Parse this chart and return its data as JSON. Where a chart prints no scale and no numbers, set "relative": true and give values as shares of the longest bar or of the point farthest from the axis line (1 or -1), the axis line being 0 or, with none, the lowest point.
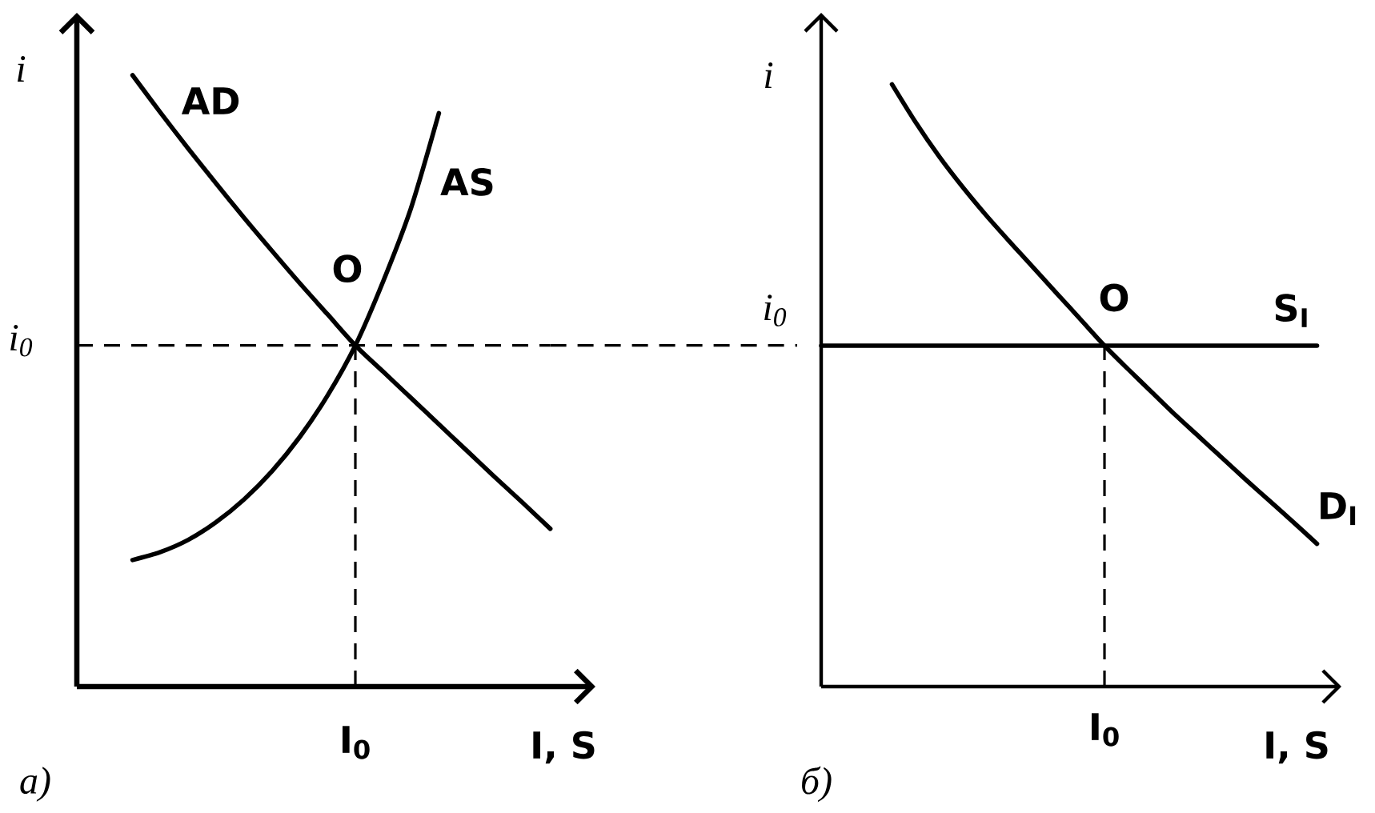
{
  "chart_data": [
    {
      "type": "line",
      "title": "а)",
      "xlabel": "I, S",
      "ylabel": "i",
      "relative": true,
      "categories": [
        null,
        null,
        null,
        null,
        null,
        null,
        null,
        null,
        null,
        null,
        null,
        null,
        null,
        null,
        null,
        null,
        null,
        null,
        null
      ],
      "series": [
        {
          "name": "AD",
          "color": "#000000",
          "values": [
            null,
            null,
            1.0,
            0.939,
            0.88,
            0.823,
            0.767,
            0.713,
            0.66,
            0.609,
            0.558,
            0.515,
            0.472,
            0.429,
            0.386,
            0.343,
            0.301,
            0.258,
            null
          ]
        },
        {
          "name": "AS",
          "color": "#000000",
          "values": [
            null,
            null,
            0.207,
            0.22,
            0.24,
            0.269,
            0.306,
            0.352,
            0.408,
            0.476,
            0.558,
            0.663,
            0.783,
            0.938,
            null,
            null,
            null,
            null,
            null
          ]
        }
      ],
      "ref_lines": [
        {
          "axis": "y",
          "value": 0.558,
          "label": "i$_{0}$",
          "color": "#000000",
          "line_style": "dashed"
        }
      ],
      "annotations": [
        {
          "text": "O",
          "y": 0.558
        },
        "I$_{0}$"
      ]
    },
    {
      "type": "line",
      "title": "б)",
      "xlabel": "I, S",
      "ylabel": "i",
      "relative": true,
      "categories": [
        null,
        null,
        null,
        null,
        null,
        null,
        null,
        null,
        null,
        null,
        null,
        null,
        null,
        null,
        null,
        null,
        null,
        null,
        null,
        null,
        null,
        null
      ],
      "series": [
        {
          "name": "D$_{I}$",
          "color": "#000000",
          "values": [
            null,
            null,
            null,
            1.0,
            0.937,
            0.88,
            0.829,
            0.782,
            0.738,
            0.695,
            0.652,
            0.609,
            0.566,
            0.527,
            0.489,
            0.451,
            0.415,
            0.379,
            0.343,
            0.308,
            0.273,
            0.237
          ]
        },
        {
          "name": "S$_{I}$",
          "color": "#000000",
          "values": [
            0.566,
            0.566,
            0.566,
            0.566,
            0.566,
            0.566,
            0.566,
            0.566,
            0.566,
            0.566,
            0.566,
            0.566,
            0.566,
            0.566,
            0.566,
            0.566,
            0.566,
            0.566,
            0.566,
            0.566,
            0.566,
            0.566
          ]
        }
      ],
      "annotations": [
        {
          "text": "O",
          "y": 0.566
        },
        "i$_{0}$",
        "I$_{0}$"
      ]
    }
  ]
}
